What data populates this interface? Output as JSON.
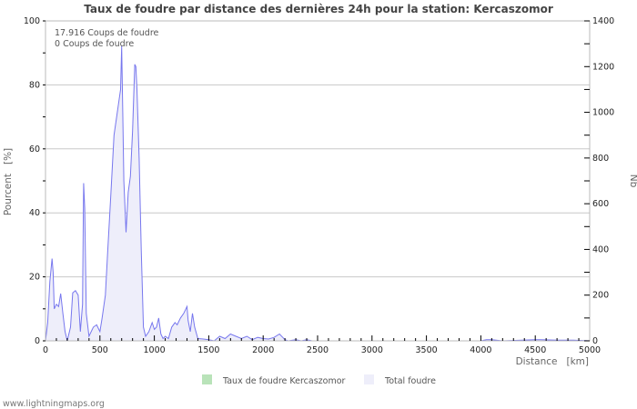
{
  "title": "Taux de foudre par distance des dernières 24h pour la station: Kercaszomor",
  "info_lines": [
    "17.916  Coups de foudre",
    "0  Coups de foudre"
  ],
  "footer": "www.lightningmaps.org",
  "legend": [
    {
      "label": "Taux de foudre Kercaszomor",
      "color": "#b9e3b9"
    },
    {
      "label": "Total foudre",
      "color": "#eeeefa"
    }
  ],
  "colors": {
    "line": "#7777ee",
    "fill": "#eeeefa",
    "grid": "#c8c8c8",
    "axis": "#bbbbbb"
  },
  "chart_data": {
    "type": "area",
    "title": "Taux de foudre par distance des dernières 24h pour la station: Kercaszomor",
    "xlabel": "Distance   [km]",
    "ylabel_left": "Pourcent   [%]",
    "ylabel_right": "Nb",
    "xlim": [
      0,
      5000
    ],
    "ylim_left": [
      0,
      100
    ],
    "ylim_right": [
      0,
      1400
    ],
    "x_ticks": [
      0,
      500,
      1000,
      1500,
      2000,
      2500,
      3000,
      3500,
      4000,
      4500,
      5000
    ],
    "y_left_ticks": [
      0,
      20,
      40,
      60,
      80,
      100
    ],
    "y_right_ticks": [
      0,
      200,
      400,
      600,
      800,
      1000,
      1200,
      1400
    ],
    "grid": true,
    "legend_position": "bottom",
    "series": [
      {
        "name": "Taux de foudre Kercaszomor",
        "axis": "left",
        "x": [
          0,
          5000
        ],
        "values": [
          0,
          0
        ]
      },
      {
        "name": "Total foudre",
        "axis": "right",
        "x": [
          0,
          20,
          40,
          60,
          70,
          80,
          100,
          120,
          140,
          160,
          180,
          200,
          230,
          250,
          275,
          300,
          320,
          340,
          350,
          360,
          375,
          400,
          420,
          440,
          470,
          500,
          520,
          550,
          570,
          600,
          630,
          660,
          690,
          700,
          710,
          720,
          740,
          760,
          780,
          800,
          820,
          830,
          840,
          860,
          880,
          900,
          920,
          950,
          980,
          1000,
          1020,
          1040,
          1060,
          1080,
          1100,
          1130,
          1160,
          1190,
          1210,
          1240,
          1270,
          1300,
          1310,
          1330,
          1350,
          1370,
          1400,
          1450,
          1500,
          1550,
          1600,
          1650,
          1700,
          1750,
          1800,
          1850,
          1900,
          1950,
          2000,
          2050,
          2100,
          2150,
          2180,
          2200,
          2230,
          2300,
          2350,
          2400,
          2450,
          2500,
          2600,
          3000,
          3500,
          4000,
          4050,
          4100,
          4200,
          4500,
          4550,
          4700,
          4850,
          5000
        ],
        "values": [
          0,
          80,
          260,
          360,
          300,
          140,
          160,
          150,
          207,
          120,
          40,
          0,
          60,
          210,
          220,
          200,
          40,
          160,
          690,
          580,
          120,
          20,
          40,
          60,
          70,
          40,
          100,
          200,
          380,
          640,
          900,
          1000,
          1100,
          1290,
          1000,
          700,
          475,
          650,
          720,
          920,
          1210,
          1200,
          1100,
          800,
          400,
          60,
          20,
          40,
          80,
          50,
          60,
          100,
          30,
          10,
          20,
          10,
          60,
          80,
          70,
          100,
          120,
          150,
          90,
          40,
          120,
          60,
          10,
          8,
          5,
          0,
          20,
          10,
          30,
          20,
          10,
          20,
          5,
          15,
          10,
          8,
          15,
          30,
          15,
          5,
          0,
          5,
          0,
          5,
          0,
          0,
          0,
          0,
          0,
          0,
          5,
          5,
          0,
          5,
          5,
          3,
          3,
          0
        ]
      }
    ],
    "annotations": [
      "17.916  Coups de foudre",
      "0  Coups de foudre"
    ]
  }
}
